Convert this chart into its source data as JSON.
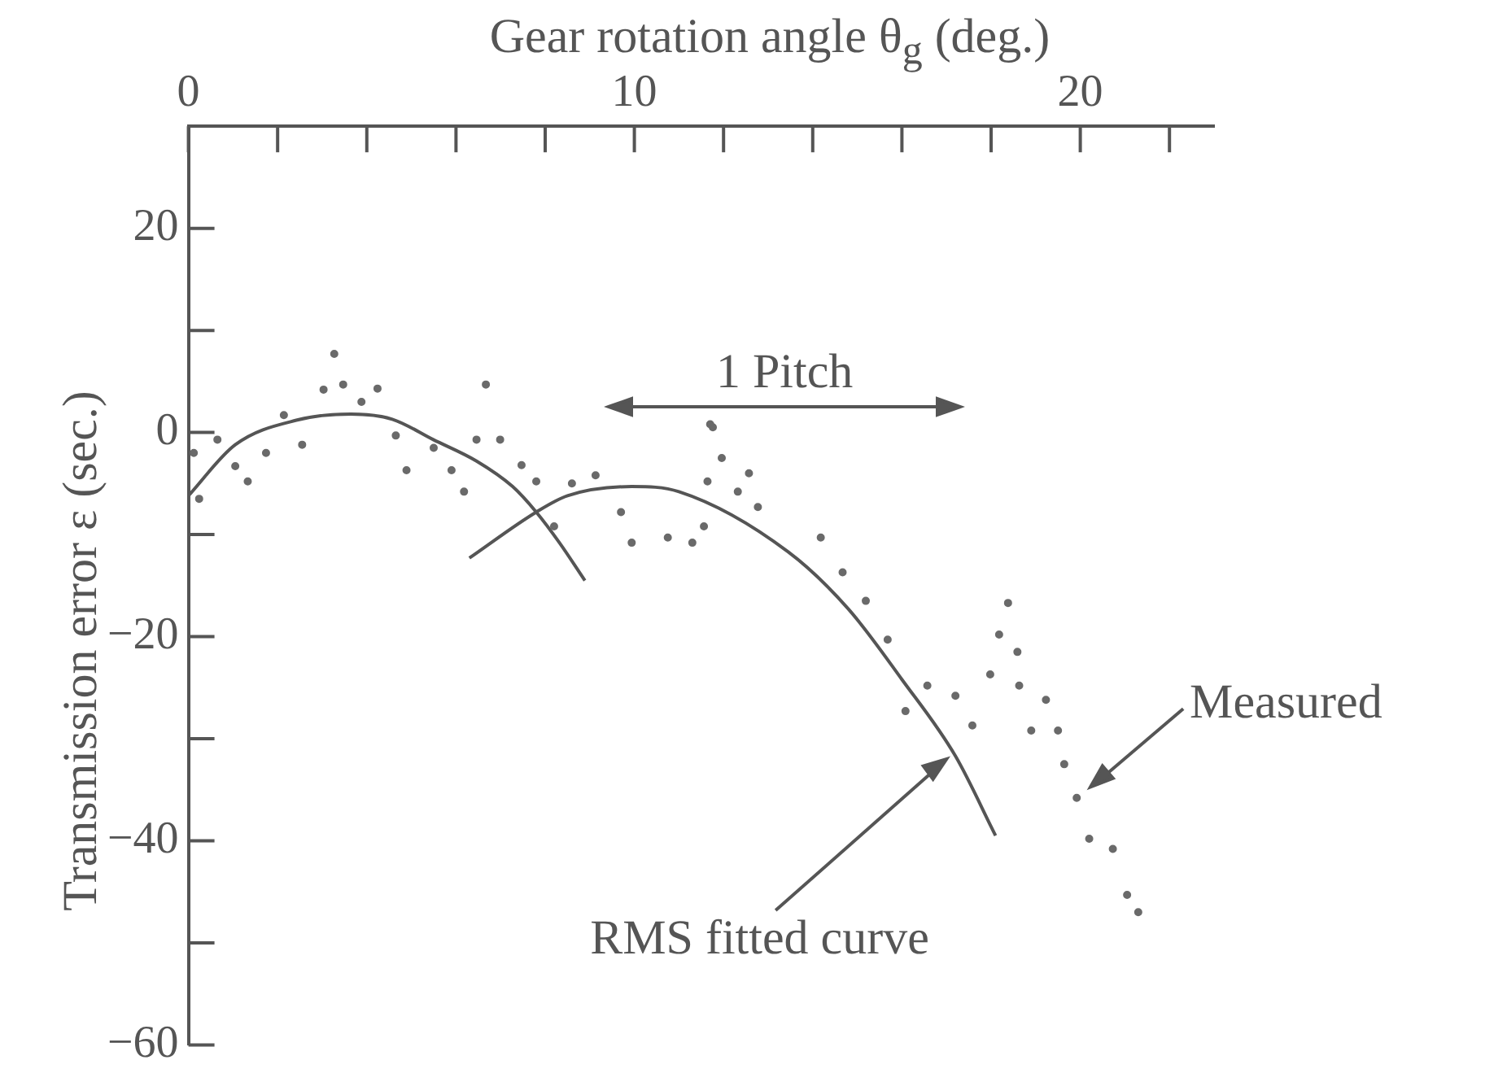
{
  "chart_data": {
    "type": "scatter",
    "xlabel": "Gear rotation angle θ$_{g}$ (deg.)",
    "ylabel": "Transmission error ε (sec.)",
    "xlim": [
      0,
      23
    ],
    "xticks": [
      0,
      {
        "value": 2,
        "label": null
      },
      {
        "value": 4,
        "label": null
      },
      {
        "value": 6,
        "label": null
      },
      {
        "value": 8,
        "label": null
      },
      10,
      {
        "value": 12,
        "label": null
      },
      {
        "value": 14,
        "label": null
      },
      {
        "value": 16,
        "label": null
      },
      {
        "value": 18,
        "label": null
      },
      20,
      {
        "value": 22,
        "label": null
      }
    ],
    "ylim": [
      -60,
      30
    ],
    "yticks": [
      {
        "value": -60,
        "label": "−60"
      },
      {
        "value": -50,
        "label": null
      },
      {
        "value": -40,
        "label": "−40"
      },
      {
        "value": -30,
        "label": null
      },
      {
        "value": -20,
        "label": "−20"
      },
      {
        "value": -10,
        "label": null
      },
      0,
      {
        "value": 10,
        "label": null
      },
      20
    ],
    "grid": false,
    "legend": false,
    "series": [
      {
        "color": "#6a6a6a",
        "marker": "circle",
        "x": [
          0.12,
          0.24,
          0.65,
          1.05,
          1.33,
          1.74,
          2.14,
          2.55,
          3.03,
          3.27,
          3.47,
          3.88,
          4.24,
          4.65,
          4.89,
          5.5,
          5.9,
          6.18,
          6.46,
          6.67,
          6.99,
          7.47,
          7.8,
          8.2,
          8.6,
          9.13,
          9.7,
          9.94,
          10.75,
          11.3,
          11.56,
          11.64,
          11.7,
          11.76,
          11.96,
          12.32,
          12.57,
          12.77,
          14.18,
          14.67,
          15.19,
          15.68,
          16.08,
          16.57,
          17.2,
          17.58,
          17.98,
          18.18,
          18.38,
          18.59,
          18.63,
          18.9,
          19.23,
          19.5,
          19.64,
          19.92,
          20.2,
          20.73,
          21.05,
          21.3
        ],
        "values": [
          -2,
          -6.5,
          -0.7,
          -3.3,
          -4.8,
          -2,
          1.7,
          -1.2,
          4.2,
          7.7,
          4.7,
          3,
          4.3,
          -0.3,
          -3.7,
          -1.5,
          -3.7,
          -5.8,
          -0.7,
          4.7,
          -0.7,
          -3.2,
          -4.8,
          -9.2,
          -5,
          -4.2,
          -7.8,
          -10.8,
          -10.3,
          -10.8,
          -9.2,
          -4.8,
          0.8,
          0.5,
          -2.5,
          -5.8,
          -4,
          -7.3,
          -10.3,
          -13.7,
          -16.5,
          -20.3,
          -27.3,
          -24.8,
          -25.8,
          -28.7,
          -23.7,
          -19.8,
          -16.7,
          -21.5,
          -24.8,
          -29.2,
          -26.2,
          -29.2,
          -32.5,
          -35.8,
          -39.8,
          -40.8,
          -45.3,
          -47
        ]
      },
      {
        "type": "line",
        "color": "#555555",
        "marker": "none",
        "line_style": "solid",
        "x": [
          0,
          1.05,
          2.42,
          3.64,
          4.57,
          5.49,
          6.46,
          7.27,
          7.8,
          8.32,
          8.89
        ],
        "values": [
          -6.2,
          -1.2,
          1.2,
          1.8,
          1.3,
          -0.7,
          -2.8,
          -5.3,
          -7.8,
          -10.8,
          -14.5
        ]
      },
      {
        "type": "line",
        "color": "#555555",
        "marker": "none",
        "line_style": "solid",
        "x": [
          6.3,
          7.8,
          8.5,
          9.94,
          11.0,
          13.45,
          14.8,
          16.0,
          17.2,
          18.1
        ],
        "values": [
          -12.3,
          -7.8,
          -6.2,
          -5.3,
          -5.8,
          -11.7,
          -17.3,
          -24.2,
          -31.7,
          -39.5
        ]
      }
    ],
    "annotations": [
      "1 Pitch",
      {
        "text": "Measured",
        "x": 19.9,
        "y": -36
      },
      {
        "text": "RMS fitted curve",
        "x": 17.0,
        "y": -32
      }
    ]
  }
}
